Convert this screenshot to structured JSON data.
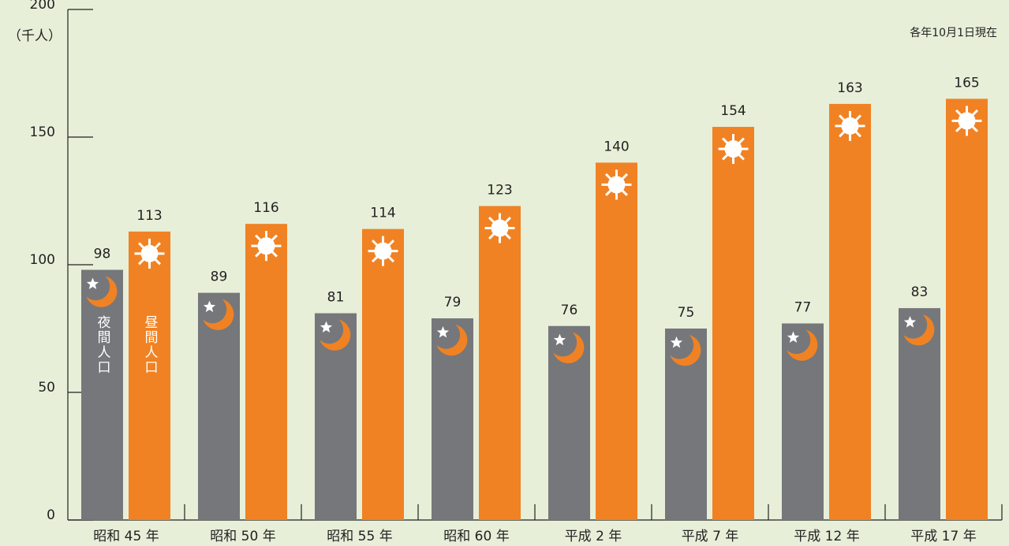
{
  "chart_data": {
    "type": "bar",
    "y_axis_label": "（千人）",
    "annotation": "各年10月1日現在",
    "categories": [
      "昭和 45 年",
      "昭和 50 年",
      "昭和 55 年",
      "昭和 60 年",
      "平成 2 年",
      "平成 7 年",
      "平成 12 年",
      "平成 17 年"
    ],
    "series": [
      {
        "name": "夜間人口",
        "color": "#76777b",
        "values": [
          98,
          89,
          81,
          79,
          76,
          75,
          77,
          83
        ]
      },
      {
        "name": "昼間人口",
        "color": "#f08223",
        "values": [
          113,
          116,
          114,
          123,
          140,
          154,
          163,
          165
        ]
      }
    ],
    "ylim": [
      0,
      200
    ],
    "yticks": [
      0,
      50,
      100,
      150,
      200
    ]
  }
}
